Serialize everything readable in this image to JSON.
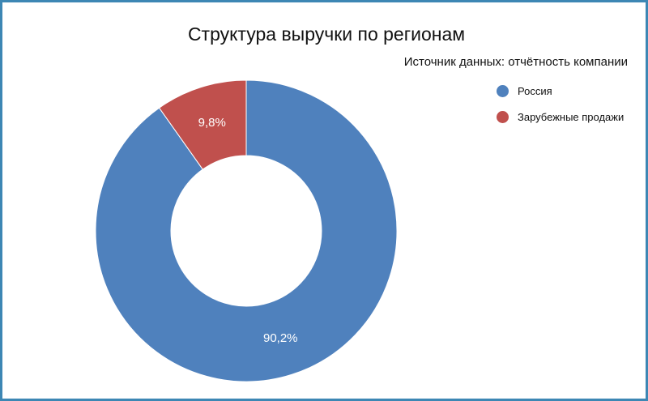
{
  "chart_data": {
    "type": "pie",
    "title": "Структура выручки по регионам",
    "subtitle": "Источник данных: отчётность компании",
    "categories": [
      "Россия",
      "Зарубежные продажи"
    ],
    "values": [
      90.2,
      9.8
    ],
    "labels": [
      "90,2%",
      "9,8%"
    ],
    "colors": [
      "#4f81bd",
      "#c0504d"
    ],
    "donut": true,
    "legend_position": "top-right"
  }
}
